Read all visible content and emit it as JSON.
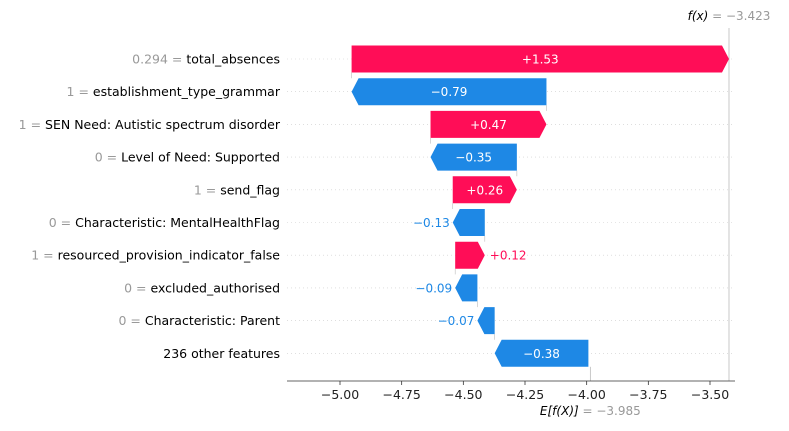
{
  "chart_data": {
    "type": "waterfall",
    "fx_label": "f(x)",
    "fx_value": "−3.423",
    "ex_label": "E[f(X)]",
    "ex_value": "−3.985",
    "base_value": -3.985,
    "output_value": -3.423,
    "xlim": [
      -5.2,
      -3.33
    ],
    "x_ticks": [
      {
        "v": -5.0,
        "label": "−5.00"
      },
      {
        "v": -4.75,
        "label": "−4.75"
      },
      {
        "v": -4.5,
        "label": "−4.50"
      },
      {
        "v": -4.25,
        "label": "−4.25"
      },
      {
        "v": -4.0,
        "label": "−4.00"
      },
      {
        "v": -3.75,
        "label": "−3.75"
      },
      {
        "v": -3.5,
        "label": "−3.50"
      }
    ],
    "features": [
      {
        "value": "0.294",
        "name": "total_absences",
        "contribution": 1.53,
        "label": "+1.53",
        "start": -4.953,
        "end": -3.423
      },
      {
        "value": "1",
        "name": "establishment_type_grammar",
        "contribution": -0.79,
        "label": "−0.79",
        "start": -4.163,
        "end": -4.953
      },
      {
        "value": "1",
        "name": "SEN Need: Autistic spectrum disorder",
        "contribution": 0.47,
        "label": "+0.47",
        "start": -4.633,
        "end": -4.163
      },
      {
        "value": "0",
        "name": "Level of Need: Supported",
        "contribution": -0.35,
        "label": "−0.35",
        "start": -4.283,
        "end": -4.633
      },
      {
        "value": "1",
        "name": "send_flag",
        "contribution": 0.26,
        "label": "+0.26",
        "start": -4.543,
        "end": -4.283
      },
      {
        "value": "0",
        "name": "Characteristic: MentalHealthFlag",
        "contribution": -0.13,
        "label": "−0.13",
        "start": -4.413,
        "end": -4.543
      },
      {
        "value": "1",
        "name": "resourced_provision_indicator_false",
        "contribution": 0.12,
        "label": "+0.12",
        "start": -4.533,
        "end": -4.413
      },
      {
        "value": "0",
        "name": "excluded_authorised",
        "contribution": -0.09,
        "label": "−0.09",
        "start": -4.443,
        "end": -4.533
      },
      {
        "value": "0",
        "name": "Characteristic: Parent",
        "contribution": -0.07,
        "label": "−0.07",
        "start": -4.373,
        "end": -4.443
      },
      {
        "value": "",
        "name": "236 other features",
        "contribution": -0.38,
        "label": "−0.38",
        "start": -3.993,
        "end": -4.373
      }
    ],
    "colors": {
      "positive": "#ff0d57",
      "negative": "#1e88e5",
      "feature_value": "#999999",
      "text": "#000000",
      "line": "#bbbbbb"
    }
  }
}
